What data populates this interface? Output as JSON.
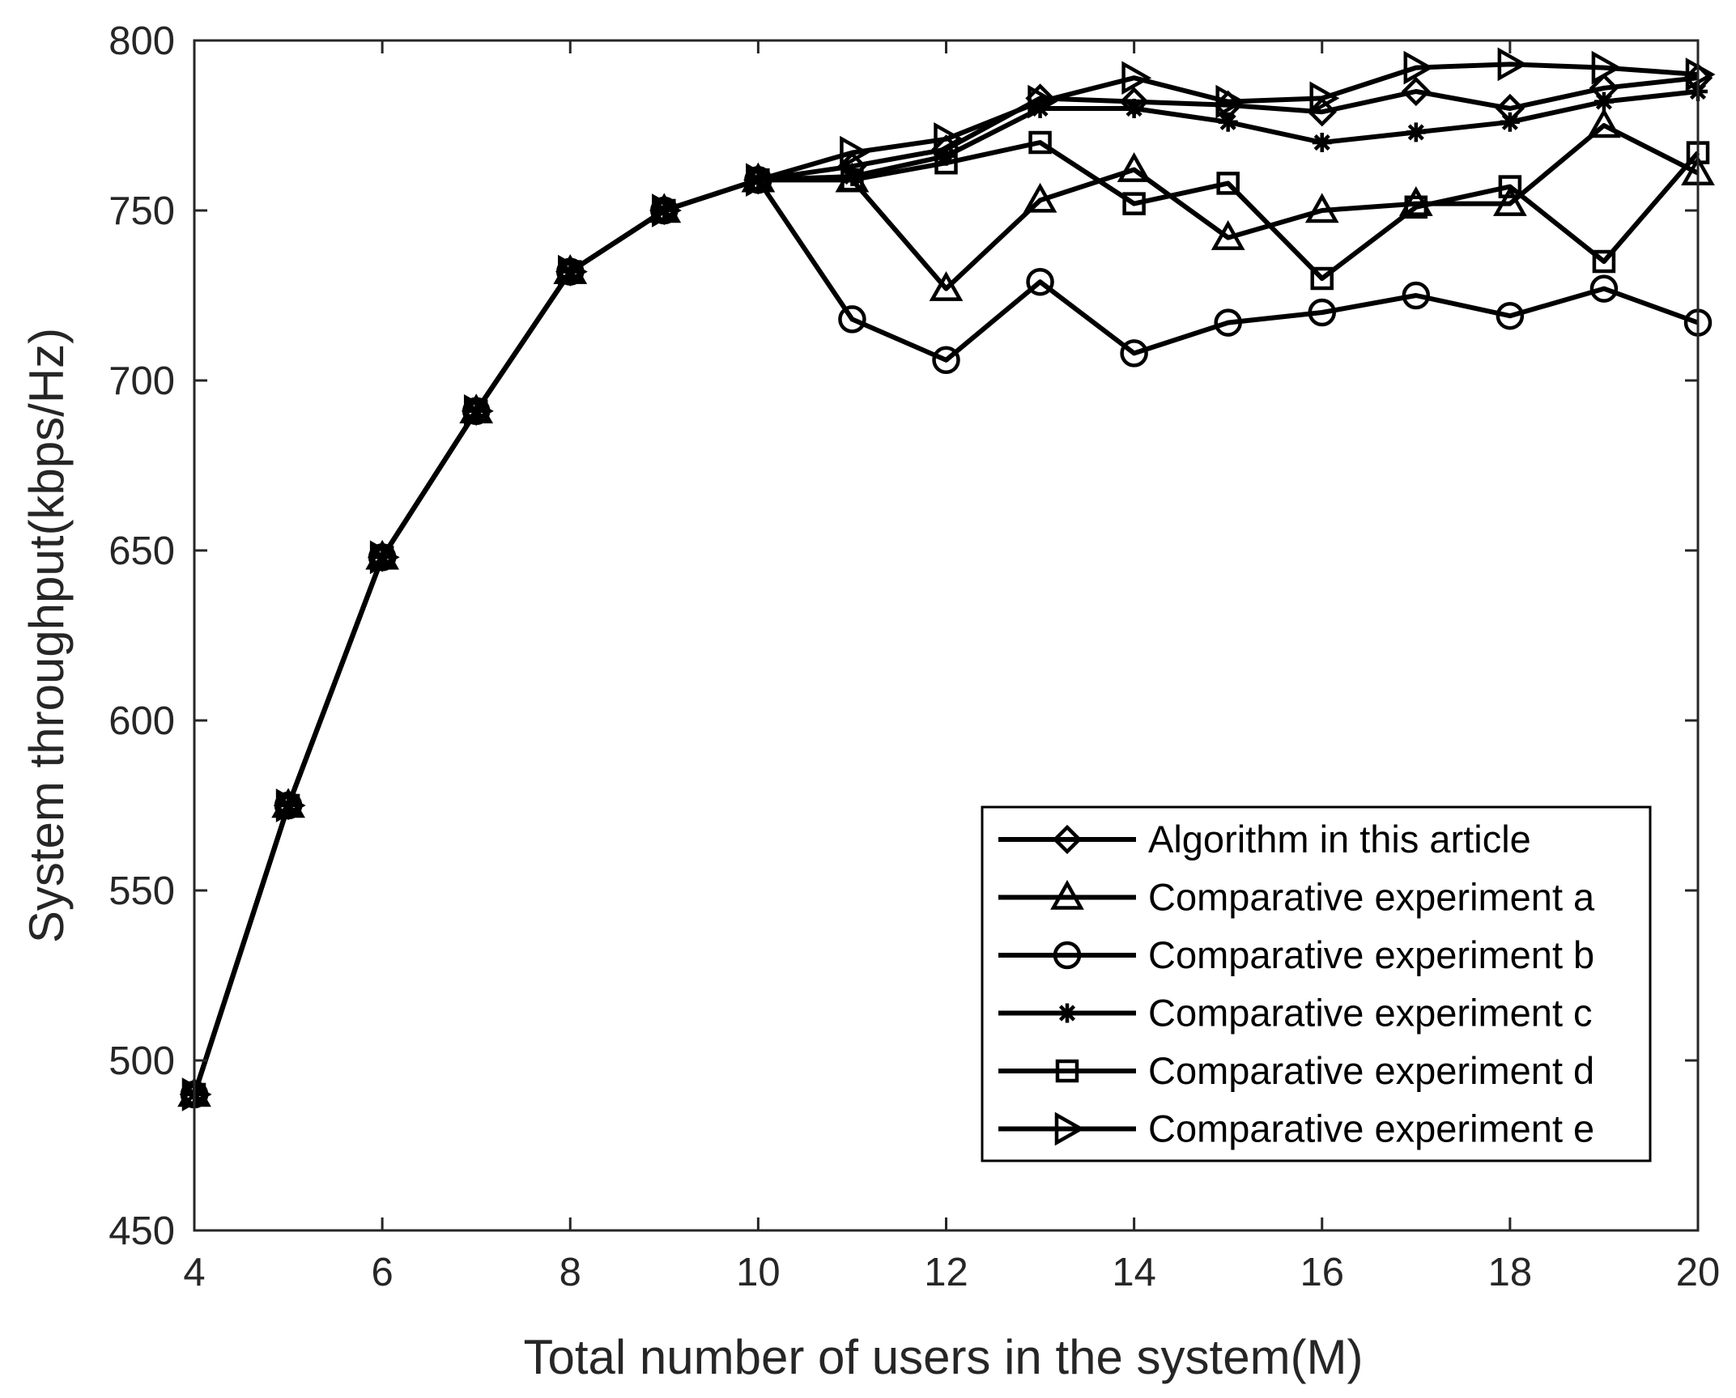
{
  "chart_data": {
    "type": "line",
    "xlabel": "Total number of users in the system(M)",
    "ylabel": "System throughput(kbps/Hz)",
    "xlim": [
      4,
      20
    ],
    "ylim": [
      450,
      800
    ],
    "xticks": [
      4,
      6,
      8,
      10,
      12,
      14,
      16,
      18,
      20
    ],
    "yticks": [
      450,
      500,
      550,
      600,
      650,
      700,
      750,
      800
    ],
    "grid": false,
    "legend_position": "bottom-right",
    "x": [
      4,
      5,
      6,
      7,
      8,
      9,
      10,
      11,
      12,
      13,
      14,
      15,
      16,
      17,
      18,
      19,
      20
    ],
    "series": [
      {
        "name": "Algorithm in this article",
        "marker": "diamond",
        "values": [
          490,
          575,
          648,
          691,
          732,
          750,
          759,
          763,
          768,
          783,
          782,
          781,
          779,
          785,
          780,
          786,
          789
        ]
      },
      {
        "name": "Comparative experiment a",
        "marker": "triangle-up",
        "values": [
          490,
          575,
          648,
          691,
          732,
          750,
          759,
          759,
          727,
          753,
          762,
          742,
          750,
          752,
          752,
          775,
          761
        ]
      },
      {
        "name": "Comparative experiment b",
        "marker": "circle",
        "values": [
          490,
          575,
          648,
          691,
          732,
          750,
          759,
          718,
          706,
          729,
          708,
          717,
          720,
          725,
          719,
          727,
          717
        ]
      },
      {
        "name": "Comparative experiment c",
        "marker": "asterisk",
        "values": [
          490,
          575,
          648,
          691,
          732,
          750,
          759,
          760,
          766,
          780,
          780,
          776,
          770,
          773,
          776,
          782,
          785
        ]
      },
      {
        "name": "Comparative experiment d",
        "marker": "square",
        "values": [
          490,
          575,
          648,
          691,
          732,
          750,
          759,
          759,
          764,
          770,
          752,
          758,
          730,
          751,
          757,
          735,
          767
        ]
      },
      {
        "name": "Comparative experiment e",
        "marker": "triangle-right",
        "values": [
          490,
          575,
          648,
          691,
          732,
          750,
          759,
          767,
          771,
          782,
          789,
          782,
          783,
          792,
          793,
          792,
          790
        ]
      }
    ]
  }
}
